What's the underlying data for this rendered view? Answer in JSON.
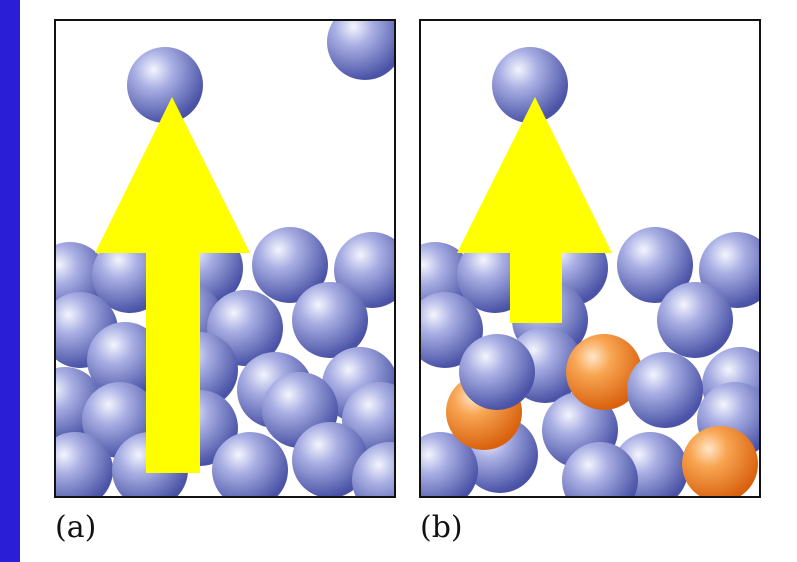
{
  "colors": {
    "background": "#2a1fd6",
    "sheet": "#ffffff",
    "atom_blue_light": "#dfe2f6",
    "atom_blue_mid": "#9aa0dc",
    "atom_blue_dark": "#4c55a8",
    "atom_orange_light": "#ffd9b0",
    "atom_orange_mid": "#f7a04c",
    "atom_orange_dark": "#e06d14",
    "arrow": "#ffff00",
    "frame": "#111111"
  },
  "panels": [
    {
      "id": "a",
      "caption": "(a)",
      "shows_impurity_atoms": false,
      "arrow_size": "long"
    },
    {
      "id": "b",
      "caption": "(b)",
      "shows_impurity_atoms": true,
      "arrow_size": "short"
    }
  ]
}
